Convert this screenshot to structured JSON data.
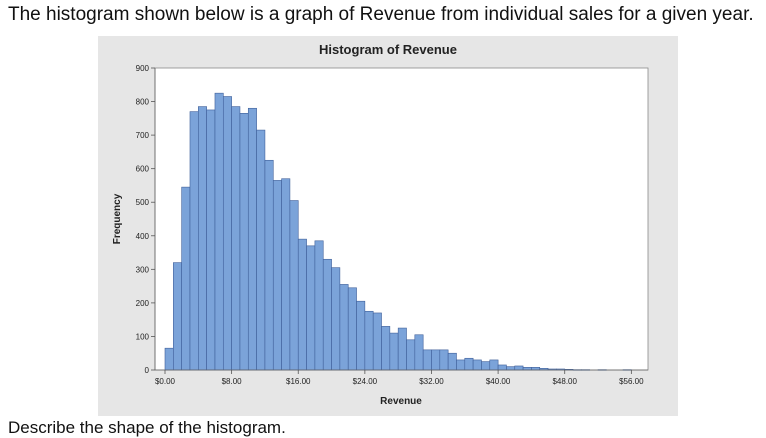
{
  "question": {
    "text": "The histogram shown below is a graph of Revenue from individual sales for a given year."
  },
  "cutoff_text": "Describe the shape of the histogram.",
  "colors": {
    "bar_fill": "#7ba3d9",
    "bar_stroke": "#3f5f99",
    "figure_background": "#e6e6e6",
    "plot_background": "#ffffff"
  },
  "chart_data": {
    "type": "bar",
    "title": "Histogram of Revenue",
    "xlabel": "Revenue",
    "ylabel": "Frequency",
    "ylim": [
      0,
      900
    ],
    "xlim": [
      0,
      58
    ],
    "bin_width": 1,
    "x_ticks": [
      0,
      8,
      16,
      24,
      32,
      40,
      48,
      56
    ],
    "x_tick_labels": [
      "$0.00",
      "$8.00",
      "$16.00",
      "$24.00",
      "$32.00",
      "$40.00",
      "$48.00",
      "$56.00"
    ],
    "y_ticks": [
      0,
      100,
      200,
      300,
      400,
      500,
      600,
      700,
      800,
      900
    ],
    "y_tick_labels": [
      "0",
      "100",
      "200",
      "300",
      "400",
      "500",
      "600",
      "700",
      "800",
      "900"
    ],
    "values": [
      65,
      320,
      545,
      770,
      785,
      775,
      825,
      815,
      785,
      765,
      780,
      715,
      625,
      565,
      570,
      505,
      390,
      370,
      385,
      330,
      305,
      255,
      245,
      205,
      175,
      170,
      130,
      110,
      125,
      90,
      105,
      60,
      60,
      60,
      50,
      30,
      35,
      30,
      25,
      30,
      15,
      10,
      12,
      8,
      8,
      5,
      3,
      3,
      2,
      1,
      1,
      0,
      1,
      0,
      0,
      1,
      0
    ]
  }
}
